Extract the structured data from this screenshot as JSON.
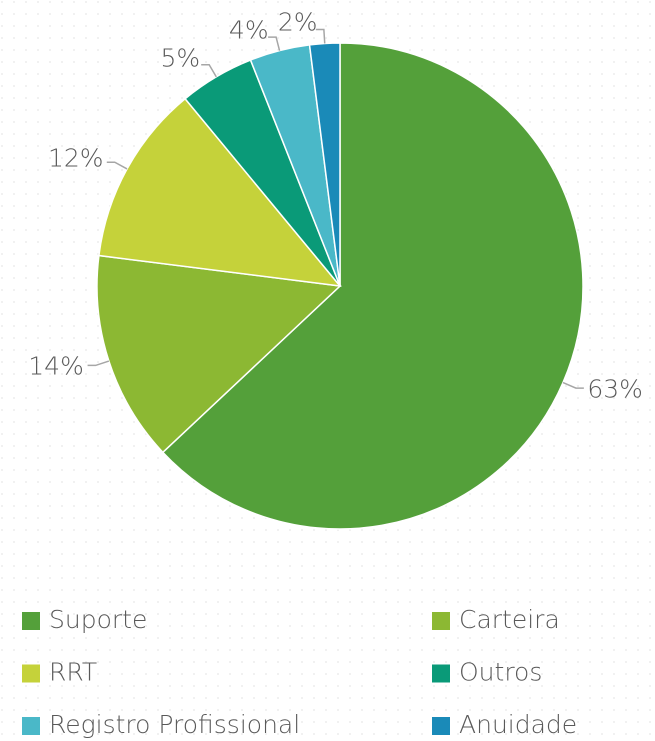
{
  "chart_data": {
    "type": "pie",
    "categories": [
      "Suporte",
      "Carteira",
      "RRT",
      "Outros",
      "Registro Profissional",
      "Anuidade"
    ],
    "values": [
      63,
      14,
      12,
      5,
      4,
      2
    ],
    "value_labels": [
      "63%",
      "14%",
      "12%",
      "5%",
      "4%",
      "2%"
    ],
    "colors": [
      "#54a03a",
      "#8cb833",
      "#c5d23a",
      "#0a9a78",
      "#4ab8c8",
      "#1a8ab8"
    ]
  }
}
